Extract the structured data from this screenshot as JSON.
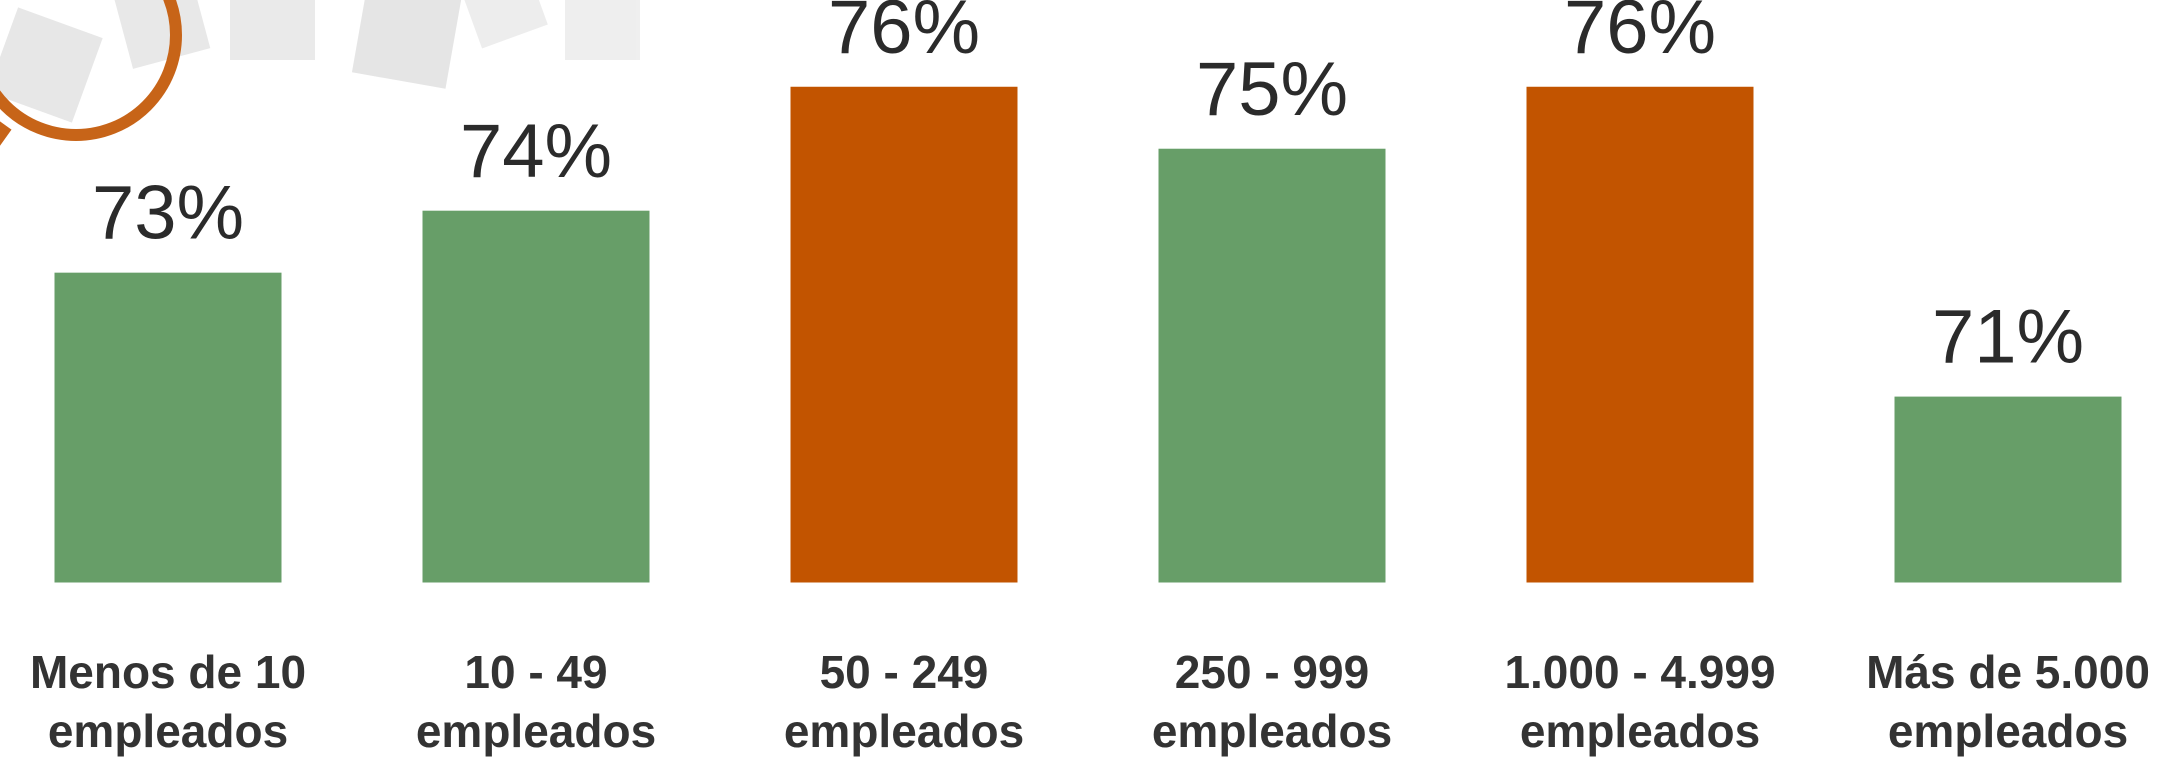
{
  "chart_data": {
    "type": "bar",
    "categories": [
      "Menos de 10\nempleados",
      "10 - 49\nempleados",
      "50 - 249\nempleados",
      "250 - 999\nempleados",
      "1.000 - 4.999\nempleados",
      "Más de 5.000\nempleados"
    ],
    "values": [
      73,
      74,
      76,
      75,
      76,
      71
    ],
    "value_labels": [
      "73%",
      "74%",
      "76%",
      "75%",
      "76%",
      "71%"
    ],
    "colors": [
      "#679e68",
      "#679e68",
      "#c25400",
      "#679e68",
      "#c25400",
      "#679e68"
    ],
    "ylim": [
      68,
      77.4
    ]
  }
}
